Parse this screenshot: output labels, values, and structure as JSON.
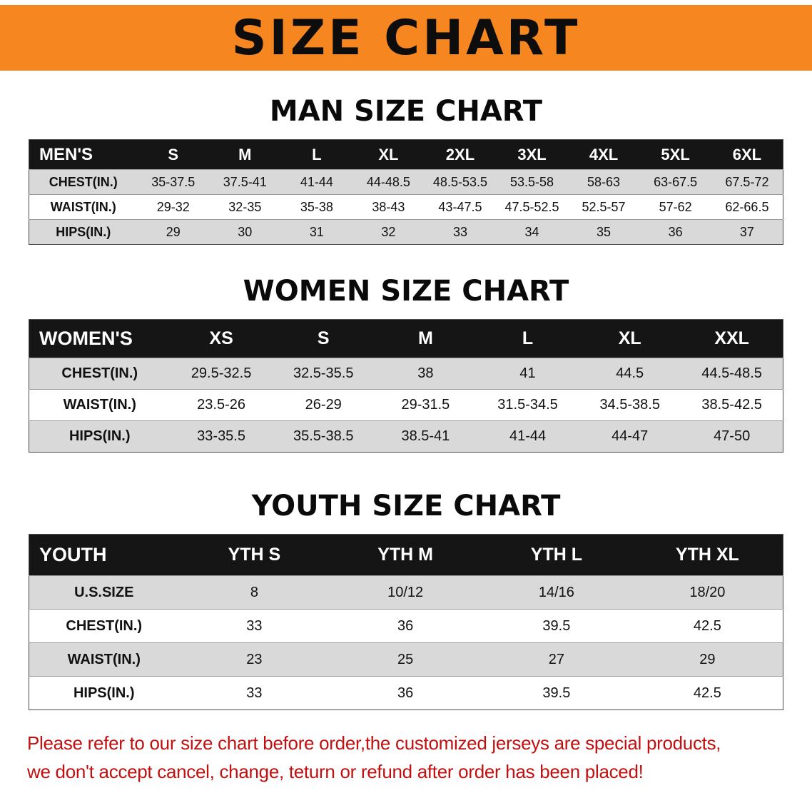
{
  "banner": {
    "title": "SIZE CHART",
    "bg_color": "#F6861F",
    "text_color": "#0D0D0D"
  },
  "sections": [
    {
      "id": "men",
      "heading": "MAN SIZE CHART",
      "table": {
        "header": [
          "MEN'S",
          "S",
          "M",
          "L",
          "XL",
          "2XL",
          "3XL",
          "4XL",
          "5XL",
          "6XL"
        ],
        "rows": [
          [
            "CHEST(IN.)",
            "35-37.5",
            "37.5-41",
            "41-44",
            "44-48.5",
            "48.5-53.5",
            "53.5-58",
            "58-63",
            "63-67.5",
            "67.5-72"
          ],
          [
            "WAIST(IN.)",
            "29-32",
            "32-35",
            "35-38",
            "38-43",
            "43-47.5",
            "47.5-52.5",
            "52.5-57",
            "57-62",
            "62-66.5"
          ],
          [
            "HIPS(IN.)",
            "29",
            "30",
            "31",
            "32",
            "33",
            "34",
            "35",
            "36",
            "37"
          ]
        ]
      }
    },
    {
      "id": "women",
      "heading": "WOMEN SIZE CHART",
      "table": {
        "header": [
          "WOMEN'S",
          "XS",
          "S",
          "M",
          "L",
          "XL",
          "XXL"
        ],
        "rows": [
          [
            "CHEST(IN.)",
            "29.5-32.5",
            "32.5-35.5",
            "38",
            "41",
            "44.5",
            "44.5-48.5"
          ],
          [
            "WAIST(IN.)",
            "23.5-26",
            "26-29",
            "29-31.5",
            "31.5-34.5",
            "34.5-38.5",
            "38.5-42.5"
          ],
          [
            "HIPS(IN.)",
            "33-35.5",
            "35.5-38.5",
            "38.5-41",
            "41-44",
            "44-47",
            "47-50"
          ]
        ]
      }
    },
    {
      "id": "youth",
      "heading": "YOUTH SIZE CHART",
      "table": {
        "header": [
          "YOUTH",
          "YTH S",
          "YTH M",
          "YTH L",
          "YTH XL"
        ],
        "rows": [
          [
            "U.S.SIZE",
            "8",
            "10/12",
            "14/16",
            "18/20"
          ],
          [
            "CHEST(IN.)",
            "33",
            "36",
            "39.5",
            "42.5"
          ],
          [
            "WAIST(IN.)",
            "23",
            "25",
            "27",
            "29"
          ],
          [
            "HIPS(IN.)",
            "33",
            "36",
            "39.5",
            "42.5"
          ]
        ]
      }
    }
  ],
  "footer": {
    "lines": [
      "Please refer to our size chart before order,the customized jerseys are special products,",
      "we don't accept cancel, change, teturn or refund after order has been placed!"
    ],
    "text_color": "#C01010"
  },
  "colors": {
    "table_header_bg": "#151515",
    "stripe_row_bg": "#D9D9D9"
  }
}
